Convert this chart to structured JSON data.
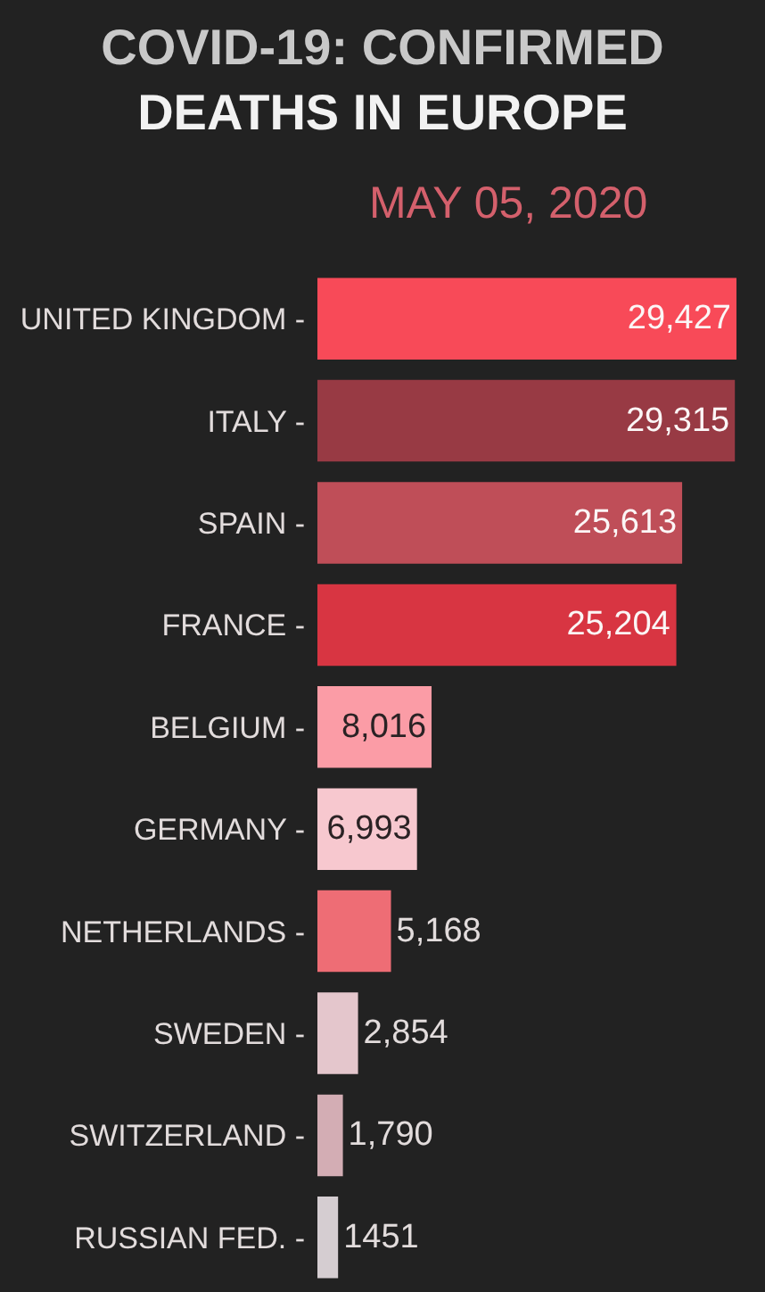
{
  "chart_data": {
    "type": "bar",
    "orientation": "horizontal",
    "title": "COVID-19: CONFIRMED\nDEATHS IN EUROPE",
    "subtitle": "MAY 05, 2020",
    "categories": [
      "UNITED KINGDOM -",
      "ITALY -",
      "SPAIN -",
      "FRANCE -",
      "BELGIUM -",
      "GERMANY -",
      "NETHERLANDS -",
      "SWEDEN -",
      "SWITZERLAND -",
      "RUSSIAN FED. -"
    ],
    "values": [
      29427,
      29315,
      25613,
      25204,
      8016,
      6993,
      5168,
      2854,
      1790,
      1451
    ],
    "value_labels": [
      "29,427",
      "29,315",
      "25,613",
      "25,204",
      "8,016",
      "6,993",
      "5,168",
      "2,854",
      "1,790",
      "1451"
    ],
    "colors": [
      "#f84a58",
      "#983a44",
      "#bf4e58",
      "#d83542",
      "#fb9ca6",
      "#f7c8cf",
      "#ee6d75",
      "#e4c6cc",
      "#d3adb4",
      "#d5cdd1"
    ],
    "tick_labels": "y"
  }
}
